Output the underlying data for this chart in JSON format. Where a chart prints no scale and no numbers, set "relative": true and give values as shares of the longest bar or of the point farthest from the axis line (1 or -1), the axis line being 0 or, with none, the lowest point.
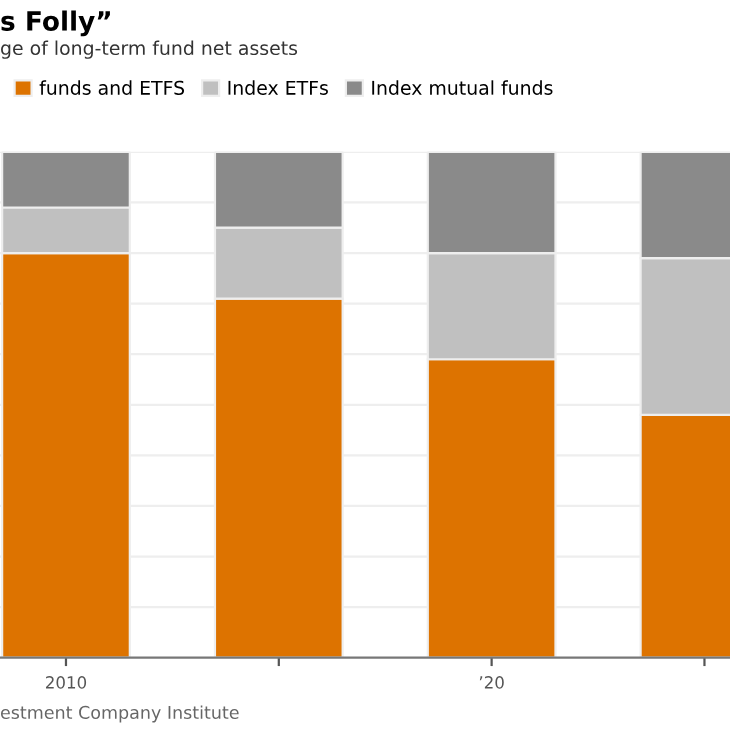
{
  "chart_data": {
    "type": "bar",
    "title": "s Folly”",
    "subtitle": "ge of long-term fund net assets",
    "categories": [
      "2010",
      null,
      "’20",
      null
    ],
    "stacked": true,
    "relative": true,
    "grid": "y",
    "legend": "top left",
    "series": [
      {
        "name": "funds and ETFS",
        "color": "#dd7300",
        "values": [
          0.8,
          0.71,
          0.59,
          0.48
        ]
      },
      {
        "name": "Index ETFs",
        "color": "#c0c0c0",
        "values": [
          0.09,
          0.14,
          0.21,
          0.31
        ]
      },
      {
        "name": "Index mutual funds",
        "color": "#8a8a8a",
        "values": [
          0.11,
          0.15,
          0.2,
          0.21
        ]
      }
    ],
    "annotations": [
      "estment Company Institute"
    ]
  }
}
